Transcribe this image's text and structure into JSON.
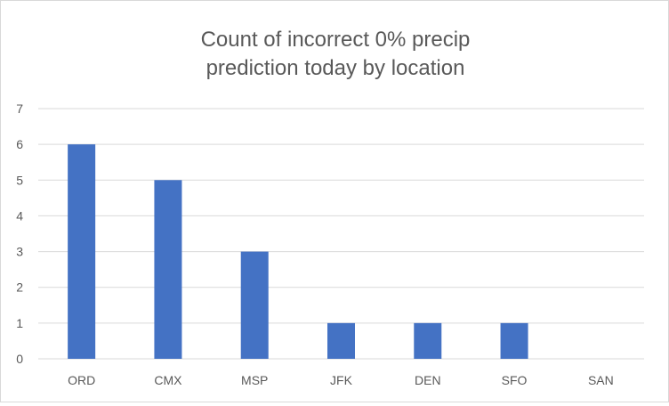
{
  "chart_data": {
    "type": "bar",
    "title_lines": [
      "Count of incorrect 0% precip",
      "prediction today by location"
    ],
    "categories": [
      "ORD",
      "CMX",
      "MSP",
      "JFK",
      "DEN",
      "SFO",
      "SAN"
    ],
    "values": [
      6,
      5,
      3,
      1,
      1,
      1,
      0
    ],
    "y_ticks": [
      "0",
      "1",
      "2",
      "3",
      "4",
      "5",
      "6",
      "7"
    ],
    "ylim": [
      0,
      7
    ],
    "grid": true,
    "bar_color": "#4472c4"
  }
}
